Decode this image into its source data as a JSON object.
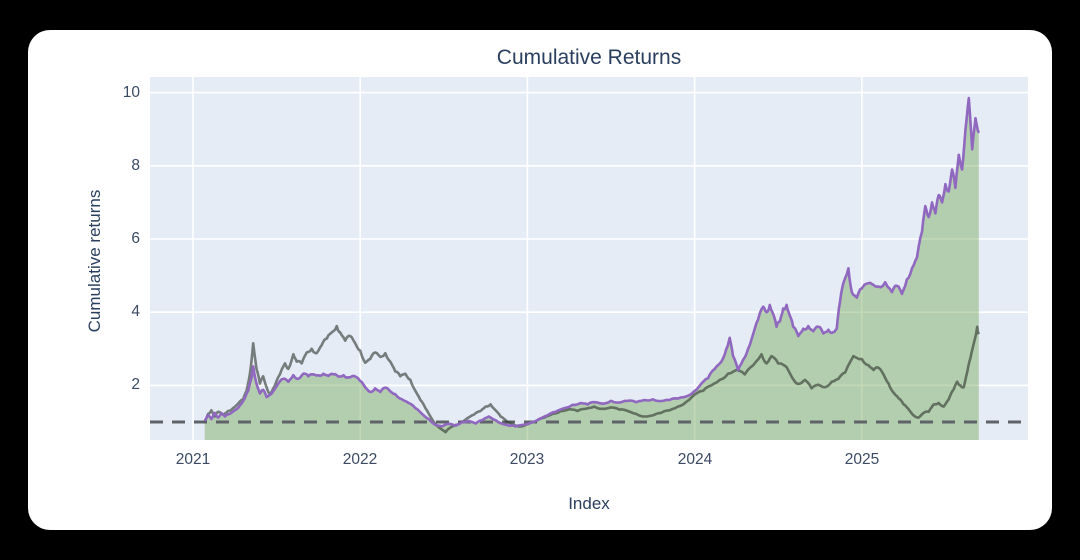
{
  "chart": {
    "title": "Cumulative Returns",
    "x_axis_title": "Index",
    "y_axis_title": "Cumulative returns",
    "x_tick_labels": [
      "2021",
      "2022",
      "2023",
      "2024",
      "2025"
    ],
    "y_tick_labels": [
      "2",
      "4",
      "6",
      "8",
      "10"
    ],
    "colors": {
      "frame_bg": "#000000",
      "card_bg": "#ffffff",
      "plot_bg": "#e5ecf6",
      "grid": "#ffffff",
      "title_text": "#2a3f5f",
      "tick_text": "#3b4a63",
      "purple_line": "#9068c0",
      "dark_line": "rgba(48,56,48,0.62)",
      "area_fill": "rgba(106,160,70,0.4)",
      "baseline": "#5f6368"
    }
  },
  "chart_data": {
    "type": "line",
    "title": "Cumulative Returns",
    "xlabel": "Index",
    "ylabel": "Cumulative returns",
    "x_ticks": [
      2021,
      2022,
      2023,
      2024,
      2025
    ],
    "y_ticks": [
      2,
      4,
      6,
      8,
      10
    ],
    "x_range": [
      2020.74,
      2025.99
    ],
    "y_range": [
      0.5,
      10.45
    ],
    "grid": true,
    "legend": false,
    "baseline": {
      "y": 1,
      "style": "dashed"
    },
    "series": [
      {
        "name": "purple_line",
        "color": "#9068c0",
        "fill_to_bottom": true,
        "fill_color": "rgba(106,160,70,0.4)",
        "points": [
          [
            2021.07,
            1.02
          ],
          [
            2021.09,
            1.18
          ],
          [
            2021.11,
            1.08
          ],
          [
            2021.13,
            1.25
          ],
          [
            2021.15,
            1.12
          ],
          [
            2021.17,
            1.24
          ],
          [
            2021.19,
            1.15
          ],
          [
            2021.22,
            1.22
          ],
          [
            2021.25,
            1.32
          ],
          [
            2021.28,
            1.45
          ],
          [
            2021.31,
            1.65
          ],
          [
            2021.33,
            1.85
          ],
          [
            2021.35,
            2.2
          ],
          [
            2021.36,
            2.52
          ],
          [
            2021.38,
            2.05
          ],
          [
            2021.4,
            1.78
          ],
          [
            2021.42,
            1.88
          ],
          [
            2021.44,
            1.68
          ],
          [
            2021.46,
            1.75
          ],
          [
            2021.48,
            1.85
          ],
          [
            2021.51,
            2.05
          ],
          [
            2021.54,
            2.18
          ],
          [
            2021.57,
            2.1
          ],
          [
            2021.6,
            2.28
          ],
          [
            2021.63,
            2.18
          ],
          [
            2021.66,
            2.32
          ],
          [
            2021.69,
            2.25
          ],
          [
            2021.72,
            2.3
          ],
          [
            2021.75,
            2.28
          ],
          [
            2021.78,
            2.32
          ],
          [
            2021.81,
            2.26
          ],
          [
            2021.84,
            2.3
          ],
          [
            2021.87,
            2.24
          ],
          [
            2021.9,
            2.28
          ],
          [
            2021.93,
            2.22
          ],
          [
            2021.96,
            2.26
          ],
          [
            2022,
            2.12
          ],
          [
            2022.03,
            1.95
          ],
          [
            2022.06,
            1.82
          ],
          [
            2022.09,
            1.92
          ],
          [
            2022.12,
            1.82
          ],
          [
            2022.15,
            1.94
          ],
          [
            2022.18,
            1.84
          ],
          [
            2022.21,
            1.76
          ],
          [
            2022.25,
            1.62
          ],
          [
            2022.29,
            1.52
          ],
          [
            2022.33,
            1.38
          ],
          [
            2022.37,
            1.22
          ],
          [
            2022.41,
            1.08
          ],
          [
            2022.45,
            0.92
          ],
          [
            2022.49,
            0.88
          ],
          [
            2022.53,
            0.95
          ],
          [
            2022.57,
            0.9
          ],
          [
            2022.61,
            1
          ],
          [
            2022.65,
            1.03
          ],
          [
            2022.69,
            0.96
          ],
          [
            2022.73,
            1.05
          ],
          [
            2022.77,
            1.15
          ],
          [
            2022.81,
            1.05
          ],
          [
            2022.85,
            0.95
          ],
          [
            2022.89,
            0.9
          ],
          [
            2022.93,
            0.88
          ],
          [
            2022.97,
            0.92
          ],
          [
            2023.02,
            0.98
          ],
          [
            2023.07,
            1.08
          ],
          [
            2023.12,
            1.18
          ],
          [
            2023.17,
            1.28
          ],
          [
            2023.22,
            1.38
          ],
          [
            2023.27,
            1.47
          ],
          [
            2023.32,
            1.52
          ],
          [
            2023.36,
            1.48
          ],
          [
            2023.4,
            1.54
          ],
          [
            2023.45,
            1.5
          ],
          [
            2023.5,
            1.58
          ],
          [
            2023.55,
            1.53
          ],
          [
            2023.6,
            1.58
          ],
          [
            2023.65,
            1.54
          ],
          [
            2023.7,
            1.6
          ],
          [
            2023.75,
            1.62
          ],
          [
            2023.8,
            1.57
          ],
          [
            2023.85,
            1.6
          ],
          [
            2023.9,
            1.64
          ],
          [
            2023.95,
            1.7
          ],
          [
            2024,
            1.85
          ],
          [
            2024.04,
            2.05
          ],
          [
            2024.08,
            2.2
          ],
          [
            2024.12,
            2.45
          ],
          [
            2024.16,
            2.65
          ],
          [
            2024.19,
            3
          ],
          [
            2024.21,
            3.3
          ],
          [
            2024.23,
            2.8
          ],
          [
            2024.26,
            2.42
          ],
          [
            2024.29,
            2.7
          ],
          [
            2024.32,
            3
          ],
          [
            2024.35,
            3.4
          ],
          [
            2024.38,
            3.8
          ],
          [
            2024.41,
            4.15
          ],
          [
            2024.43,
            4
          ],
          [
            2024.45,
            4.2
          ],
          [
            2024.47,
            3.95
          ],
          [
            2024.49,
            3.6
          ],
          [
            2024.51,
            3.75
          ],
          [
            2024.53,
            4.1
          ],
          [
            2024.55,
            4.2
          ],
          [
            2024.57,
            3.9
          ],
          [
            2024.59,
            3.6
          ],
          [
            2024.62,
            3.35
          ],
          [
            2024.65,
            3.55
          ],
          [
            2024.68,
            3.62
          ],
          [
            2024.71,
            3.48
          ],
          [
            2024.74,
            3.6
          ],
          [
            2024.77,
            3.42
          ],
          [
            2024.8,
            3.52
          ],
          [
            2024.83,
            3.46
          ],
          [
            2024.85,
            3.55
          ],
          [
            2024.87,
            4.3
          ],
          [
            2024.89,
            4.8
          ],
          [
            2024.92,
            5.2
          ],
          [
            2024.94,
            4.55
          ],
          [
            2024.97,
            4.4
          ],
          [
            2025,
            4.65
          ],
          [
            2025.05,
            4.8
          ],
          [
            2025.1,
            4.7
          ],
          [
            2025.14,
            4.82
          ],
          [
            2025.18,
            4.55
          ],
          [
            2025.21,
            4.72
          ],
          [
            2025.24,
            4.5
          ],
          [
            2025.27,
            4.9
          ],
          [
            2025.3,
            5.2
          ],
          [
            2025.33,
            5.5
          ],
          [
            2025.36,
            6.2
          ],
          [
            2025.38,
            6.9
          ],
          [
            2025.4,
            6.6
          ],
          [
            2025.42,
            7
          ],
          [
            2025.44,
            6.7
          ],
          [
            2025.46,
            7.2
          ],
          [
            2025.48,
            7
          ],
          [
            2025.5,
            7.5
          ],
          [
            2025.52,
            7.3
          ],
          [
            2025.54,
            7.9
          ],
          [
            2025.56,
            7.4
          ],
          [
            2025.58,
            8.3
          ],
          [
            2025.6,
            7.9
          ],
          [
            2025.62,
            9
          ],
          [
            2025.64,
            9.85
          ],
          [
            2025.66,
            8.45
          ],
          [
            2025.68,
            9.3
          ],
          [
            2025.7,
            8.9
          ]
        ]
      },
      {
        "name": "dark_line",
        "color": "rgba(48,56,48,0.62)",
        "fill_to_bottom": false,
        "points": [
          [
            2021.07,
            1
          ],
          [
            2021.09,
            1.22
          ],
          [
            2021.11,
            1.32
          ],
          [
            2021.13,
            1.15
          ],
          [
            2021.15,
            1.28
          ],
          [
            2021.18,
            1.2
          ],
          [
            2021.21,
            1.3
          ],
          [
            2021.24,
            1.38
          ],
          [
            2021.27,
            1.5
          ],
          [
            2021.3,
            1.62
          ],
          [
            2021.32,
            1.85
          ],
          [
            2021.34,
            2.3
          ],
          [
            2021.36,
            3.15
          ],
          [
            2021.38,
            2.45
          ],
          [
            2021.4,
            2.05
          ],
          [
            2021.42,
            2.25
          ],
          [
            2021.44,
            1.95
          ],
          [
            2021.46,
            1.75
          ],
          [
            2021.49,
            2
          ],
          [
            2021.52,
            2.3
          ],
          [
            2021.55,
            2.6
          ],
          [
            2021.57,
            2.45
          ],
          [
            2021.6,
            2.85
          ],
          [
            2021.62,
            2.65
          ],
          [
            2021.65,
            2.6
          ],
          [
            2021.68,
            2.9
          ],
          [
            2021.71,
            3
          ],
          [
            2021.74,
            2.88
          ],
          [
            2021.77,
            3.1
          ],
          [
            2021.8,
            3.28
          ],
          [
            2021.83,
            3.45
          ],
          [
            2021.86,
            3.62
          ],
          [
            2021.88,
            3.45
          ],
          [
            2021.91,
            3.22
          ],
          [
            2021.94,
            3.35
          ],
          [
            2021.97,
            3.15
          ],
          [
            2022,
            2.95
          ],
          [
            2022.03,
            2.62
          ],
          [
            2022.06,
            2.72
          ],
          [
            2022.09,
            2.9
          ],
          [
            2022.12,
            2.78
          ],
          [
            2022.15,
            2.88
          ],
          [
            2022.18,
            2.65
          ],
          [
            2022.21,
            2.38
          ],
          [
            2022.24,
            2.25
          ],
          [
            2022.27,
            2.32
          ],
          [
            2022.3,
            2.15
          ],
          [
            2022.33,
            1.85
          ],
          [
            2022.36,
            1.6
          ],
          [
            2022.39,
            1.38
          ],
          [
            2022.42,
            1.15
          ],
          [
            2022.45,
            0.95
          ],
          [
            2022.48,
            0.82
          ],
          [
            2022.51,
            0.72
          ],
          [
            2022.54,
            0.85
          ],
          [
            2022.57,
            0.92
          ],
          [
            2022.6,
            0.98
          ],
          [
            2022.64,
            1.1
          ],
          [
            2022.68,
            1.2
          ],
          [
            2022.72,
            1.3
          ],
          [
            2022.75,
            1.42
          ],
          [
            2022.78,
            1.48
          ],
          [
            2022.81,
            1.32
          ],
          [
            2022.84,
            1.15
          ],
          [
            2022.88,
            1
          ],
          [
            2022.92,
            0.92
          ],
          [
            2022.96,
            0.88
          ],
          [
            2023,
            0.94
          ],
          [
            2023.05,
            1.02
          ],
          [
            2023.1,
            1.12
          ],
          [
            2023.15,
            1.22
          ],
          [
            2023.2,
            1.3
          ],
          [
            2023.25,
            1.35
          ],
          [
            2023.3,
            1.3
          ],
          [
            2023.35,
            1.36
          ],
          [
            2023.4,
            1.42
          ],
          [
            2023.45,
            1.36
          ],
          [
            2023.5,
            1.4
          ],
          [
            2023.55,
            1.34
          ],
          [
            2023.6,
            1.3
          ],
          [
            2023.65,
            1.22
          ],
          [
            2023.7,
            1.15
          ],
          [
            2023.75,
            1.18
          ],
          [
            2023.8,
            1.25
          ],
          [
            2023.85,
            1.32
          ],
          [
            2023.9,
            1.42
          ],
          [
            2023.95,
            1.55
          ],
          [
            2024,
            1.75
          ],
          [
            2024.05,
            1.85
          ],
          [
            2024.1,
            2
          ],
          [
            2024.15,
            2.15
          ],
          [
            2024.2,
            2.32
          ],
          [
            2024.25,
            2.42
          ],
          [
            2024.3,
            2.3
          ],
          [
            2024.35,
            2.55
          ],
          [
            2024.4,
            2.85
          ],
          [
            2024.43,
            2.6
          ],
          [
            2024.46,
            2.8
          ],
          [
            2024.5,
            2.6
          ],
          [
            2024.55,
            2.5
          ],
          [
            2024.6,
            2.1
          ],
          [
            2024.63,
            2.05
          ],
          [
            2024.66,
            2.15
          ],
          [
            2024.7,
            1.92
          ],
          [
            2024.74,
            2.02
          ],
          [
            2024.78,
            1.95
          ],
          [
            2024.82,
            2.1
          ],
          [
            2024.86,
            2.18
          ],
          [
            2024.9,
            2.35
          ],
          [
            2024.95,
            2.8
          ],
          [
            2025,
            2.72
          ],
          [
            2025.04,
            2.55
          ],
          [
            2025.07,
            2.42
          ],
          [
            2025.1,
            2.48
          ],
          [
            2025.13,
            2.3
          ],
          [
            2025.16,
            2.05
          ],
          [
            2025.19,
            1.8
          ],
          [
            2025.22,
            1.65
          ],
          [
            2025.25,
            1.48
          ],
          [
            2025.28,
            1.35
          ],
          [
            2025.31,
            1.18
          ],
          [
            2025.34,
            1.12
          ],
          [
            2025.37,
            1.25
          ],
          [
            2025.4,
            1.28
          ],
          [
            2025.43,
            1.48
          ],
          [
            2025.46,
            1.52
          ],
          [
            2025.49,
            1.42
          ],
          [
            2025.52,
            1.62
          ],
          [
            2025.55,
            1.9
          ],
          [
            2025.57,
            2.1
          ],
          [
            2025.59,
            2
          ],
          [
            2025.61,
            1.95
          ],
          [
            2025.63,
            2.35
          ],
          [
            2025.65,
            2.75
          ],
          [
            2025.67,
            3.15
          ],
          [
            2025.69,
            3.6
          ],
          [
            2025.7,
            3.4
          ]
        ]
      }
    ]
  }
}
